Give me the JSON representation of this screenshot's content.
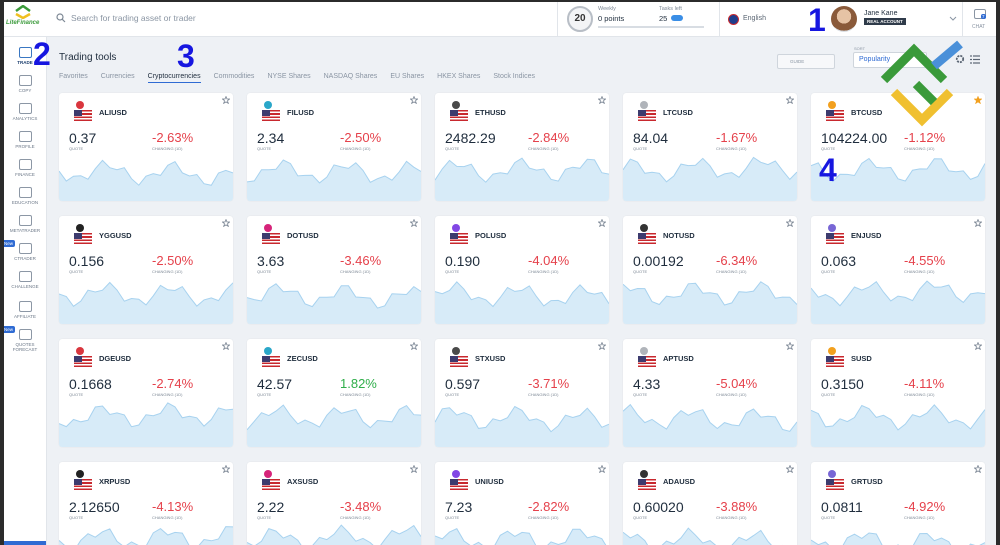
{
  "header": {
    "logo_text": "LiteFinance",
    "search_placeholder": "Search for trading asset or trader",
    "level": "20",
    "weekly_label": "Weekly",
    "weekly_points": "0 points",
    "tasks_label": "Tasks left",
    "tasks_count": "25",
    "language": "English",
    "user_name": "Jane Kane",
    "account_type": "REAL ACCOUNT",
    "chat_label": "CHAT",
    "chat_badge": "7"
  },
  "sidebar": {
    "items": [
      {
        "label": "TRADE"
      },
      {
        "label": "COPY"
      },
      {
        "label": "ANALYTICS"
      },
      {
        "label": "PROFILE"
      },
      {
        "label": "FINANCE"
      },
      {
        "label": "EDUCATION"
      },
      {
        "label": "METATRADER"
      },
      {
        "label": "CTRADER",
        "badge": "New"
      },
      {
        "label": "CHALLENGE"
      },
      {
        "label": "AFFILIATE"
      },
      {
        "label": "QUOTES FORECAST",
        "badge": "New"
      }
    ],
    "active": 0
  },
  "main": {
    "title": "Trading tools",
    "tabs": [
      "Favorites",
      "Currencies",
      "Cryptocurrencies",
      "Commodities",
      "NYSE Shares",
      "NASDAQ Shares",
      "EU Shares",
      "HKEX Shares",
      "Stock Indices"
    ],
    "active_tab": 2,
    "guide": "GUIDE",
    "sort_label": "SORT",
    "sort_value": "Popularity"
  },
  "card_labels": {
    "quote": "QUOTE",
    "change": "CHANGING (1D)"
  },
  "cards": [
    {
      "symbol": "ALIUSD",
      "quote": "0.37",
      "change": "-2.63%"
    },
    {
      "symbol": "FILUSD",
      "quote": "2.34",
      "change": "-2.50%"
    },
    {
      "symbol": "ETHUSD",
      "quote": "2482.29",
      "change": "-2.84%"
    },
    {
      "symbol": "LTCUSD",
      "quote": "84.04",
      "change": "-1.67%"
    },
    {
      "symbol": "BTCUSD",
      "quote": "104224.00",
      "change": "-1.12%",
      "favorite": true
    },
    {
      "symbol": "YGGUSD",
      "quote": "0.156",
      "change": "-2.50%"
    },
    {
      "symbol": "DOTUSD",
      "quote": "3.63",
      "change": "-3.46%"
    },
    {
      "symbol": "POLUSD",
      "quote": "0.190",
      "change": "-4.04%"
    },
    {
      "symbol": "NOTUSD",
      "quote": "0.00192",
      "change": "-6.34%"
    },
    {
      "symbol": "ENJUSD",
      "quote": "0.063",
      "change": "-4.55%"
    },
    {
      "symbol": "DGEUSD",
      "quote": "0.1668",
      "change": "-2.74%"
    },
    {
      "symbol": "ZECUSD",
      "quote": "42.57",
      "change": "1.82%"
    },
    {
      "symbol": "STXUSD",
      "quote": "0.597",
      "change": "-3.71%"
    },
    {
      "symbol": "APTUSD",
      "quote": "4.33",
      "change": "-5.04%"
    },
    {
      "symbol": "SUSD",
      "quote": "0.3150",
      "change": "-4.11%"
    },
    {
      "symbol": "XRPUSD",
      "quote": "2.12650",
      "change": "-4.13%"
    },
    {
      "symbol": "AXSUSD",
      "quote": "2.22",
      "change": "-3.48%"
    },
    {
      "symbol": "UNIUSD",
      "quote": "7.23",
      "change": "-2.82%"
    },
    {
      "symbol": "ADAUSD",
      "quote": "0.60020",
      "change": "-3.88%"
    },
    {
      "symbol": "GRTUSD",
      "quote": "0.0811",
      "change": "-4.92%"
    }
  ],
  "annotations": [
    "1",
    "2",
    "3",
    "4"
  ]
}
